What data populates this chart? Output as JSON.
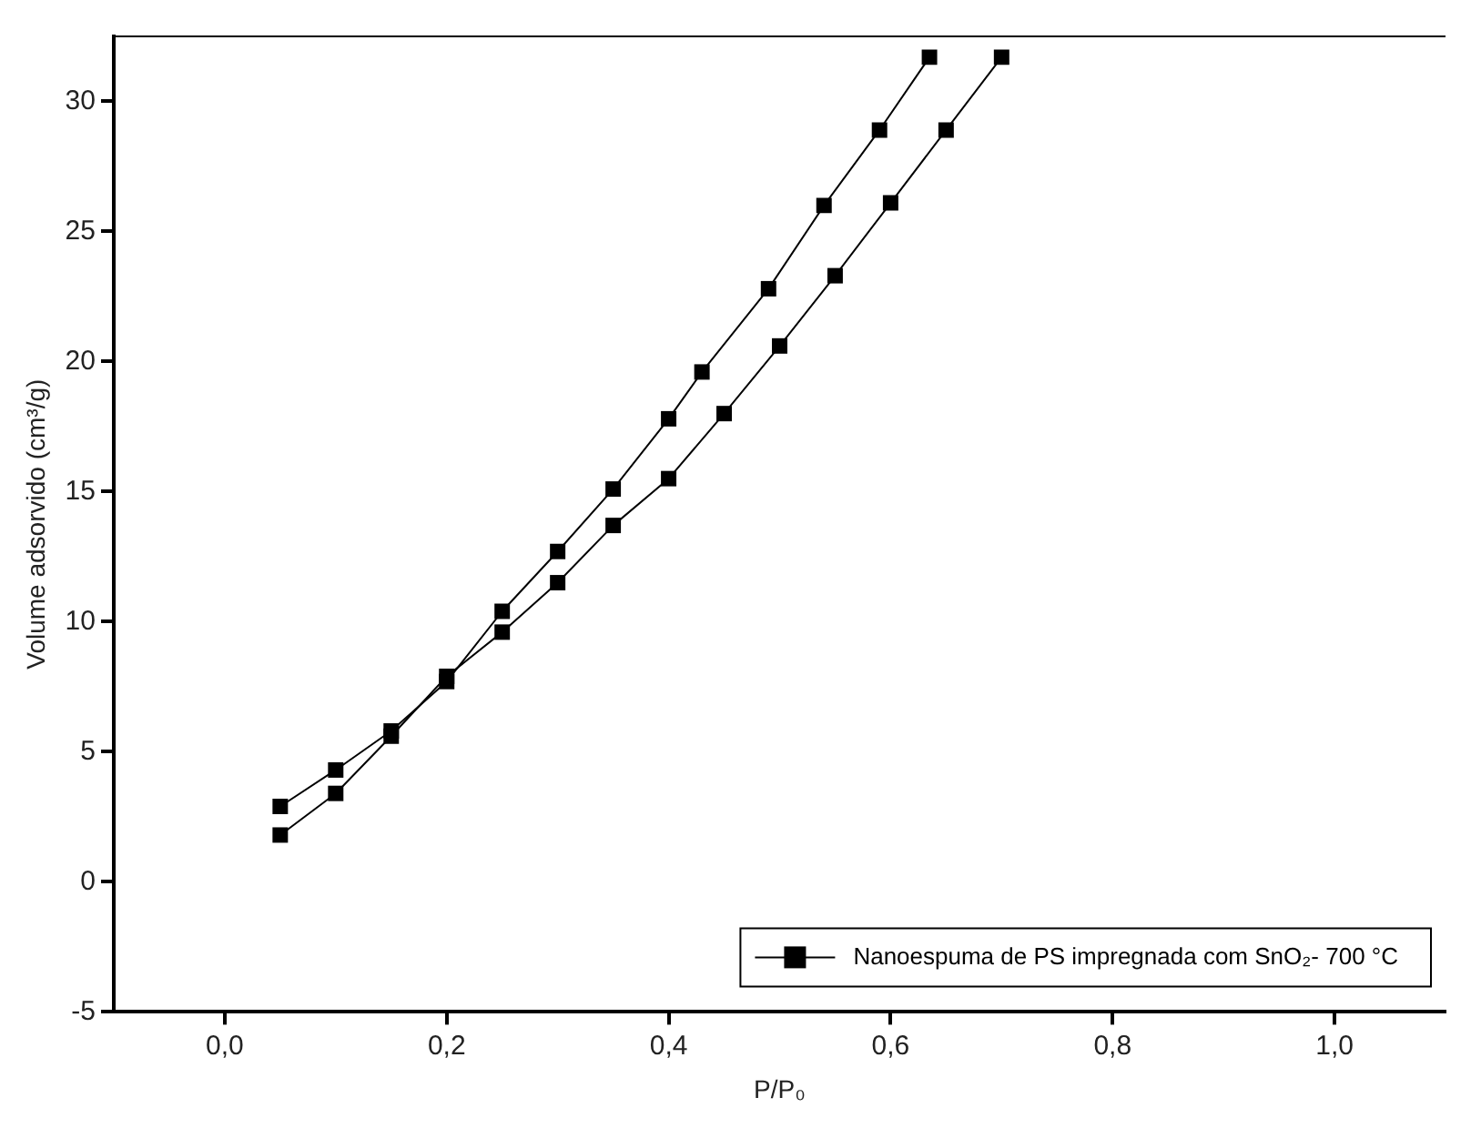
{
  "chart_data": {
    "type": "line",
    "xlabel": "P/P₀",
    "ylabel": "Volume adsorvido (cm³/g)",
    "xlim": [
      -0.1,
      1.1
    ],
    "ylim": [
      -5,
      32.5
    ],
    "xticks": [
      {
        "value": 0,
        "label": "0,0"
      },
      {
        "value": 0.2,
        "label": "0,2"
      },
      {
        "value": 0.4,
        "label": "0,4"
      },
      {
        "value": 0.6,
        "label": "0,6"
      },
      {
        "value": 0.8,
        "label": "0,8"
      },
      {
        "value": 1,
        "label": "1,0"
      }
    ],
    "yticks": [
      -5,
      0,
      5,
      10,
      15,
      20,
      25,
      30
    ],
    "grid": false,
    "legend": "bottom right",
    "marker": "square",
    "line_style": "solid",
    "series": [
      {
        "name": "Nanoespuma de PS impregnada com SnO₂- 700 °C",
        "color": "#000000",
        "x": [
          0.05,
          0.1,
          0.15,
          0.2,
          0.25,
          0.3,
          0.35,
          0.4,
          0.45,
          0.5,
          0.55,
          0.6,
          0.65,
          0.7
        ],
        "values": [
          1.8,
          3.4,
          5.6,
          7.9,
          9.6,
          11.5,
          13.7,
          15.5,
          18.0,
          20.6,
          23.3,
          26.1,
          28.9,
          31.7
        ]
      },
      {
        "color": "#000000",
        "x": [
          0.05,
          0.1,
          0.15,
          0.2,
          0.25,
          0.3,
          0.35,
          0.4,
          0.43,
          0.49,
          0.54,
          0.59,
          0.635
        ],
        "values": [
          2.9,
          4.3,
          5.8,
          7.7,
          10.4,
          12.7,
          15.1,
          17.8,
          19.6,
          22.8,
          26.0,
          28.9,
          31.7
        ]
      }
    ]
  }
}
